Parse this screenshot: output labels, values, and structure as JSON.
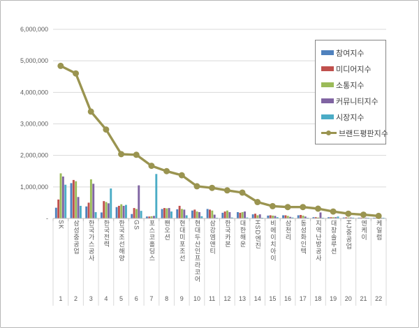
{
  "window": {
    "background": "#ffffff",
    "border_color": "#b7b7b7"
  },
  "chart_data": {
    "type": "bar",
    "title": "",
    "xlabel": "",
    "ylabel": "",
    "ylim": [
      0,
      6000000
    ],
    "ytick_interval": 1000000,
    "yticks": [
      {
        "value": 6000000,
        "label": "6,000,000"
      },
      {
        "value": 5000000,
        "label": "5,000,000"
      },
      {
        "value": 4000000,
        "label": "4,000,000"
      },
      {
        "value": 3000000,
        "label": "3,000,000"
      },
      {
        "value": 2000000,
        "label": "2,000,000"
      },
      {
        "value": 1000000,
        "label": "1,000,000"
      },
      {
        "value": 0,
        "label": "-"
      }
    ],
    "grid": true,
    "legend_position": "top-right",
    "categories": [
      "SK",
      "삼성중공업",
      "한국가스공사",
      "한국전력",
      "한국조선해양",
      "GS",
      "포스코홀딩스",
      "팬오션",
      "현대미포조선",
      "현대두산인프라코어",
      "삼강엠앤티",
      "한국카본",
      "대한해운",
      "HSD엔진",
      "비에이치아이",
      "삼천리",
      "동성화인텍",
      "지역난방공사",
      "대창솔루션",
      "HJ중공업",
      "엔케이",
      "케일럼"
    ],
    "ranks": [
      "1",
      "2",
      "3",
      "4",
      "5",
      "6",
      "7",
      "8",
      "9",
      "10",
      "11",
      "12",
      "13",
      "14",
      "15",
      "16",
      "17",
      "18",
      "19",
      "20",
      "21",
      "22"
    ],
    "series": [
      {
        "name": "참여지수",
        "type": "bar",
        "color": "#4F81BD",
        "values": [
          340000,
          1120000,
          380000,
          190000,
          360000,
          140000,
          60000,
          300000,
          290000,
          250000,
          300000,
          180000,
          200000,
          130000,
          90000,
          100000,
          100000,
          40000,
          40000,
          30000,
          25000,
          15000
        ]
      },
      {
        "name": "미디어지수",
        "type": "bar",
        "color": "#C0504D",
        "values": [
          600000,
          1220000,
          500000,
          550000,
          400000,
          330000,
          60000,
          330000,
          400000,
          280000,
          280000,
          220000,
          180000,
          150000,
          100000,
          100000,
          110000,
          40000,
          40000,
          35000,
          25000,
          20000
        ]
      },
      {
        "name": "소통지수",
        "type": "bar",
        "color": "#9BBB59",
        "values": [
          1430000,
          1180000,
          1240000,
          520000,
          450000,
          300000,
          70000,
          320000,
          300000,
          220000,
          250000,
          250000,
          200000,
          100000,
          90000,
          80000,
          90000,
          30000,
          40000,
          30000,
          25000,
          15000
        ]
      },
      {
        "name": "커뮤니티지수",
        "type": "bar",
        "color": "#8064A2",
        "values": [
          1330000,
          680000,
          1100000,
          480000,
          400000,
          1050000,
          80000,
          330000,
          280000,
          200000,
          120000,
          200000,
          220000,
          130000,
          80000,
          50000,
          60000,
          190000,
          40000,
          30000,
          25000,
          15000
        ]
      },
      {
        "name": "시장지수",
        "type": "bar",
        "color": "#4BACC6",
        "values": [
          1070000,
          400000,
          200000,
          950000,
          430000,
          240000,
          1410000,
          220000,
          100000,
          70000,
          20000,
          30000,
          30000,
          20000,
          40000,
          30000,
          20000,
          20000,
          60000,
          25000,
          20000,
          10000
        ]
      },
      {
        "name": "브랜드평판지수",
        "type": "line",
        "color": "#9A9450",
        "values": [
          4840000,
          4600000,
          3390000,
          2820000,
          2040000,
          2020000,
          1670000,
          1500000,
          1370000,
          1020000,
          970000,
          890000,
          820000,
          520000,
          390000,
          360000,
          360000,
          310000,
          220000,
          150000,
          120000,
          80000
        ]
      }
    ],
    "colors": {
      "gridline": "#d9d9d9",
      "axis_line": "#bfbfbf",
      "tick_text": "#595959"
    }
  }
}
